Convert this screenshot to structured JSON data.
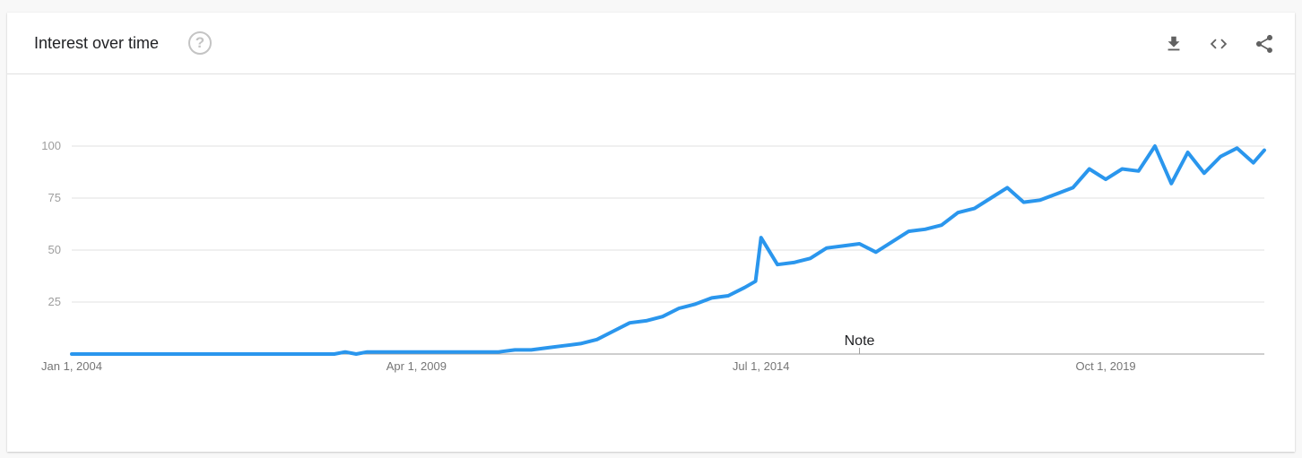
{
  "header": {
    "title": "Interest over time",
    "help_icon": "help-circle-icon",
    "tools": [
      {
        "name": "download-button",
        "icon": "download-icon"
      },
      {
        "name": "embed-button",
        "icon": "code-icon"
      },
      {
        "name": "share-button",
        "icon": "share-icon"
      }
    ]
  },
  "chart_data": {
    "type": "line",
    "title": "",
    "xlabel": "",
    "ylabel": "",
    "ylim": [
      0,
      100
    ],
    "yticks": [
      25,
      50,
      75,
      100
    ],
    "xticks": [
      "Jan 1, 2004",
      "Apr 1, 2009",
      "Jul 1, 2014",
      "Oct 1, 2019"
    ],
    "grid": true,
    "line_color": "#2a96ed",
    "annotation": {
      "label": "Note",
      "date": "2016-01"
    },
    "series": [
      {
        "x": [
          "2004-01",
          "2004-07",
          "2005-01",
          "2005-07",
          "2006-01",
          "2006-07",
          "2007-01",
          "2007-07",
          "2008-01",
          "2008-03",
          "2008-05",
          "2008-07",
          "2008-09",
          "2009-01",
          "2009-07",
          "2010-01",
          "2010-07",
          "2010-10",
          "2011-01",
          "2011-04",
          "2011-07",
          "2011-10",
          "2012-01",
          "2012-04",
          "2012-07",
          "2012-10",
          "2013-01",
          "2013-04",
          "2013-07",
          "2013-10",
          "2014-01",
          "2014-04",
          "2014-06",
          "2014-07",
          "2014-10",
          "2015-01",
          "2015-04",
          "2015-07",
          "2015-10",
          "2016-01",
          "2016-04",
          "2016-07",
          "2016-10",
          "2017-01",
          "2017-04",
          "2017-07",
          "2017-10",
          "2018-01",
          "2018-04",
          "2018-07",
          "2018-10",
          "2019-01",
          "2019-04",
          "2019-07",
          "2019-10",
          "2020-01",
          "2020-04",
          "2020-07",
          "2020-10",
          "2021-01",
          "2021-04",
          "2021-07",
          "2021-10",
          "2022-01",
          "2022-03"
        ],
        "y": [
          0,
          0,
          0,
          0,
          0,
          0,
          0,
          0,
          0,
          1,
          0,
          1,
          1,
          1,
          1,
          1,
          1,
          2,
          2,
          3,
          4,
          5,
          7,
          11,
          15,
          16,
          18,
          22,
          24,
          27,
          28,
          32,
          35,
          56,
          43,
          44,
          46,
          51,
          52,
          53,
          49,
          54,
          59,
          60,
          62,
          68,
          70,
          75,
          80,
          73,
          74,
          77,
          80,
          89,
          84,
          89,
          88,
          100,
          82,
          97,
          87,
          95,
          99,
          92,
          98
        ]
      }
    ]
  }
}
